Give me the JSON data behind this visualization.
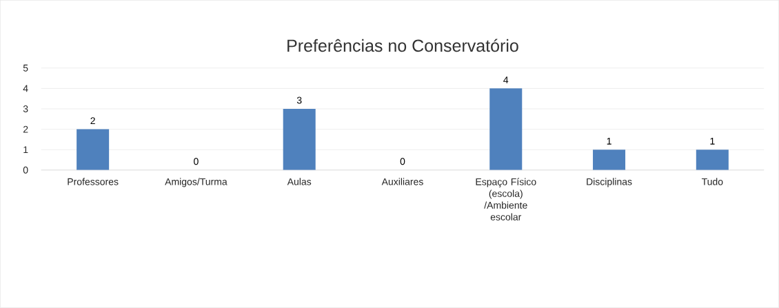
{
  "chart_data": {
    "type": "bar",
    "title": "Preferências no Conservatório",
    "categories": [
      "Professores",
      "Amigos/Turma",
      "Aulas",
      "Auxiliares",
      "Espaço Físico (escola) /Ambiente escolar",
      "Disciplinas",
      "Tudo"
    ],
    "values": [
      2,
      0,
      3,
      0,
      4,
      1,
      1
    ],
    "color": "#4f81bd",
    "ylim": [
      0,
      5
    ],
    "yticks": [
      0,
      1,
      2,
      3,
      4,
      5
    ],
    "grid": "y",
    "data_labels": true
  }
}
